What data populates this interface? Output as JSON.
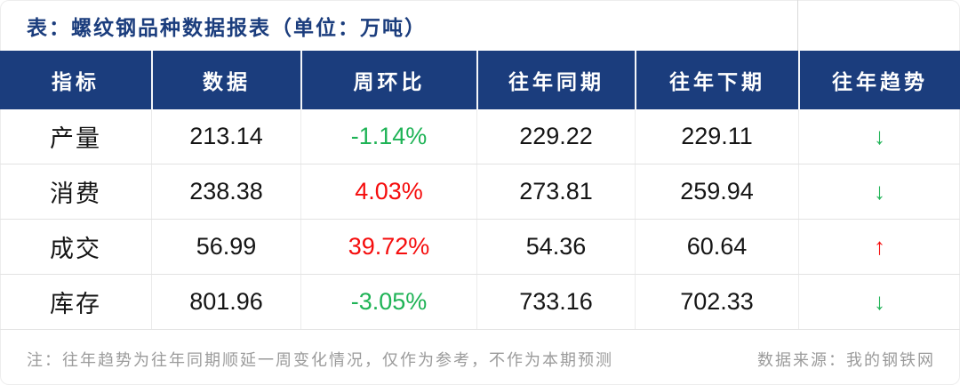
{
  "title": "表：螺纹钢品种数据报表（单位：万吨）",
  "chart_data": {
    "type": "table",
    "title": "表：螺纹钢品种数据报表（单位：万吨）",
    "unit": "万吨",
    "columns": [
      "指标",
      "数据",
      "周环比",
      "往年同期",
      "往年下期",
      "往年趋势"
    ],
    "rows": [
      {
        "indicator": "产量",
        "data": "213.14",
        "wow": {
          "text": "-1.14%",
          "color": "#1fb356"
        },
        "prev_same": "229.22",
        "prev_next": "229.11",
        "trend": {
          "glyph": "↓",
          "direction": "down",
          "color": "#1fb356"
        }
      },
      {
        "indicator": "消费",
        "data": "238.38",
        "wow": {
          "text": "4.03%",
          "color": "#f50d0d"
        },
        "prev_same": "273.81",
        "prev_next": "259.94",
        "trend": {
          "glyph": "↓",
          "direction": "down",
          "color": "#1fb356"
        }
      },
      {
        "indicator": "成交",
        "data": "56.99",
        "wow": {
          "text": "39.72%",
          "color": "#f50d0d"
        },
        "prev_same": "54.36",
        "prev_next": "60.64",
        "trend": {
          "glyph": "↑",
          "direction": "up",
          "color": "#f50d0d"
        }
      },
      {
        "indicator": "库存",
        "data": "801.96",
        "wow": {
          "text": "-3.05%",
          "color": "#1fb356"
        },
        "prev_same": "733.16",
        "prev_next": "702.33",
        "trend": {
          "glyph": "↓",
          "direction": "down",
          "color": "#1fb356"
        }
      }
    ]
  },
  "footer": {
    "note": "注：往年趋势为往年同期顺延一周变化情况，仅作为参考，不作为本期预测",
    "source": "数据来源：我的钢铁网"
  },
  "colors": {
    "header_bg": "#1b3d7d",
    "title_text": "#1b3d7d",
    "rise_red": "#f50d0d",
    "fall_green": "#1fb356",
    "note_gray": "#9b9b9b",
    "grid_line": "#e3e3e3"
  }
}
